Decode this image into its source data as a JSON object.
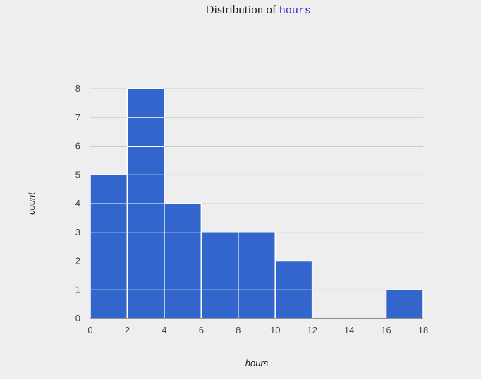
{
  "title": {
    "prefix": "Distribution of",
    "variable": "hours"
  },
  "chart_data": {
    "type": "bar",
    "title": "Distribution of hours",
    "xlabel": "hours",
    "ylabel": "count",
    "bins": [
      [
        0,
        2
      ],
      [
        2,
        4
      ],
      [
        4,
        6
      ],
      [
        6,
        8
      ],
      [
        8,
        10
      ],
      [
        10,
        12
      ],
      [
        12,
        14
      ],
      [
        14,
        16
      ],
      [
        16,
        18
      ]
    ],
    "values": [
      5,
      8,
      4,
      3,
      3,
      2,
      0,
      0,
      1
    ],
    "xlim": [
      0,
      18
    ],
    "ylim": [
      0,
      8
    ],
    "xticks": [
      0,
      2,
      4,
      6,
      8,
      10,
      12,
      14,
      16,
      18
    ],
    "yticks": [
      0,
      1,
      2,
      3,
      4,
      5,
      6,
      7,
      8
    ],
    "grid": true,
    "colors": {
      "bar": "#3366cc",
      "bar_edge": "#ffffff",
      "grid": "#cccccc",
      "background": "#eeeeee"
    }
  }
}
